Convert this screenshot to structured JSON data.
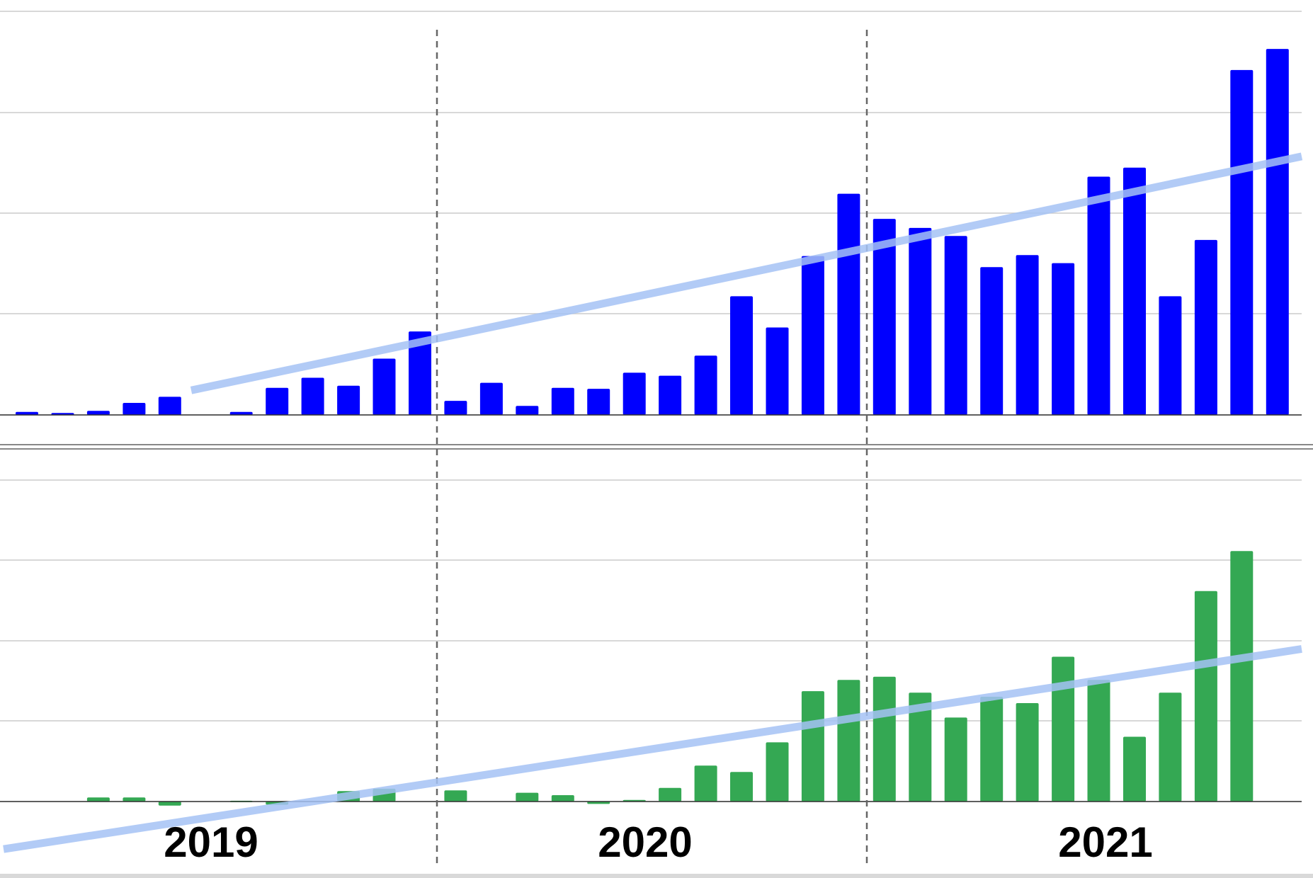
{
  "chart_data": [
    {
      "type": "bar",
      "name": "top-panel",
      "categories": [
        "2019-01",
        "2019-02",
        "2019-03",
        "2019-04",
        "2019-05",
        "2019-06",
        "2019-07",
        "2019-08",
        "2019-09",
        "2019-10",
        "2019-11",
        "2019-12",
        "2020-01",
        "2020-02",
        "2020-03",
        "2020-04",
        "2020-05",
        "2020-06",
        "2020-07",
        "2020-08",
        "2020-09",
        "2020-10",
        "2020-11",
        "2020-12",
        "2021-01",
        "2021-02",
        "2021-03",
        "2021-04",
        "2021-05",
        "2021-06",
        "2021-07",
        "2021-08",
        "2021-09",
        "2021-10",
        "2021-11",
        "2021-12"
      ],
      "values": [
        0.3,
        0.2,
        0.4,
        1.2,
        1.8,
        0,
        0.3,
        2.7,
        3.7,
        2.9,
        5.6,
        8.3,
        1.4,
        3.2,
        0.9,
        2.7,
        2.6,
        4.2,
        3.9,
        5.9,
        11.8,
        8.7,
        15.8,
        22.0,
        19.5,
        18.6,
        17.8,
        14.7,
        15.9,
        15.1,
        23.7,
        24.6,
        11.8,
        17.4,
        34.3,
        36.4
      ],
      "trend": [
        -1.0,
        25.2
      ],
      "ylim": [
        0,
        40
      ],
      "grid": true,
      "colors": {
        "bar": "#0000ff",
        "trend": "#a4c2f4"
      }
    },
    {
      "type": "bar",
      "name": "bottom-panel",
      "categories": [
        "2019-01",
        "2019-02",
        "2019-03",
        "2019-04",
        "2019-05",
        "2019-06",
        "2019-07",
        "2019-08",
        "2019-09",
        "2019-10",
        "2019-11",
        "2019-12",
        "2020-01",
        "2020-02",
        "2020-03",
        "2020-04",
        "2020-05",
        "2020-06",
        "2020-07",
        "2020-08",
        "2020-09",
        "2020-10",
        "2020-11",
        "2020-12",
        "2021-01",
        "2021-02",
        "2021-03",
        "2021-04",
        "2021-05",
        "2021-06",
        "2021-07",
        "2021-08",
        "2021-09",
        "2021-10",
        "2021-11",
        "2021-12"
      ],
      "values": [
        0,
        0,
        0.5,
        0.5,
        -0.5,
        0,
        0.1,
        -0.4,
        0,
        1.3,
        1.6,
        0,
        1.4,
        0,
        1.1,
        0.8,
        -0.3,
        0.2,
        1.7,
        4.5,
        3.7,
        7.4,
        13.8,
        15.2,
        15.6,
        13.6,
        10.5,
        13.1,
        12.3,
        18.1,
        15.2,
        8.1,
        13.6,
        26.3,
        31.3,
        0
      ],
      "trend": [
        -5.5,
        18.6
      ],
      "ylim": [
        -10,
        40
      ],
      "grid": true,
      "colors": {
        "bar": "#34a853",
        "trend": "#a4c2f4"
      }
    }
  ],
  "year_labels": [
    "2019",
    "2020",
    "2021"
  ],
  "colors": {
    "separator": "#666666",
    "grid": "#cccccc",
    "axis": "#333333"
  }
}
